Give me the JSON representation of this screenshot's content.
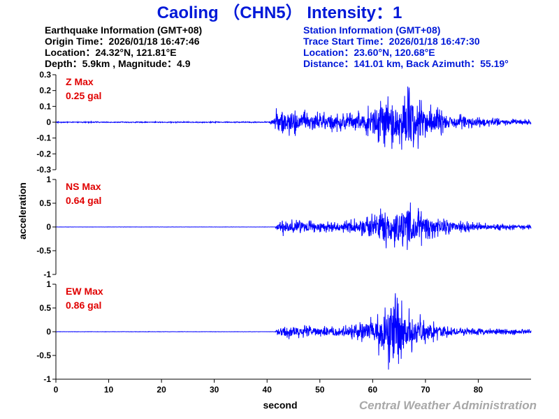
{
  "title": "Caoling （CHN5） Intensity：1",
  "earthquake_info": {
    "heading": "Earthquake Information  (GMT+08)",
    "origin_time": "Origin Time：2026/01/18 16:47:46",
    "location": "Location：24.32°N, 121.81°E",
    "depth_magnitude": "Depth：5.9km , Magnitude：4.9"
  },
  "station_info": {
    "heading": "Station Information  (GMT+08)",
    "trace_start": "Trace Start Time：2026/01/18 16:47:30",
    "location": "Location：23.60°N, 120.68°E",
    "distance": "Distance：141.01 km, Back Azimuth：55.19°"
  },
  "credit": "Central Weather Administration",
  "colors": {
    "title": "#0018d8",
    "trace": "#0000ff",
    "max_label": "#e00000",
    "credit": "#a8a8a8"
  },
  "chart_data": {
    "type": "line",
    "xlabel": "second",
    "ylabel": "acceleration",
    "xlim": [
      0,
      90
    ],
    "xticks": [
      0,
      10,
      20,
      30,
      40,
      50,
      60,
      70,
      80
    ],
    "grid": false,
    "panels": [
      {
        "component": "Z",
        "max_label": "Z Max",
        "max_value": "0.25 gal",
        "ylim": [
          -0.3,
          0.3
        ],
        "yticks": [
          0.3,
          0.2,
          0.1,
          0,
          -0.1,
          -0.2,
          -0.3
        ],
        "envelope": {
          "t": [
            0,
            40.5,
            41.5,
            42,
            43,
            45,
            50,
            55,
            58,
            60,
            62,
            64,
            66,
            67,
            68,
            70,
            72,
            75,
            80,
            85,
            90
          ],
          "amp": [
            0.004,
            0.004,
            0.06,
            0.12,
            0.11,
            0.09,
            0.07,
            0.06,
            0.08,
            0.13,
            0.19,
            0.17,
            0.22,
            0.25,
            0.2,
            0.13,
            0.1,
            0.06,
            0.035,
            0.025,
            0.02
          ]
        }
      },
      {
        "component": "NS",
        "max_label": "NS Max",
        "max_value": "0.64 gal",
        "ylim": [
          -1,
          1
        ],
        "yticks": [
          1,
          0.5,
          0,
          -0.5,
          -1
        ],
        "envelope": {
          "t": [
            0,
            41.5,
            42,
            43,
            45,
            50,
            55,
            58,
            60,
            62,
            64,
            66,
            67,
            68,
            70,
            72,
            75,
            80,
            85,
            90
          ],
          "amp": [
            0.003,
            0.003,
            0.1,
            0.2,
            0.17,
            0.12,
            0.15,
            0.22,
            0.33,
            0.45,
            0.5,
            0.55,
            0.64,
            0.5,
            0.35,
            0.22,
            0.15,
            0.1,
            0.07,
            0.06
          ]
        }
      },
      {
        "component": "EW",
        "max_label": "EW Max",
        "max_value": "0.86 gal",
        "ylim": [
          -1,
          1
        ],
        "yticks": [
          1,
          0.5,
          0,
          -0.5,
          -1
        ],
        "envelope": {
          "t": [
            0,
            41.5,
            42,
            43,
            45,
            50,
            55,
            58,
            60,
            62,
            63,
            64,
            65,
            66,
            68,
            70,
            72,
            75,
            80,
            85,
            90
          ],
          "amp": [
            0.004,
            0.004,
            0.12,
            0.18,
            0.15,
            0.12,
            0.14,
            0.22,
            0.4,
            0.65,
            0.8,
            0.86,
            0.75,
            0.6,
            0.45,
            0.3,
            0.2,
            0.12,
            0.09,
            0.07,
            0.06
          ]
        }
      }
    ]
  }
}
